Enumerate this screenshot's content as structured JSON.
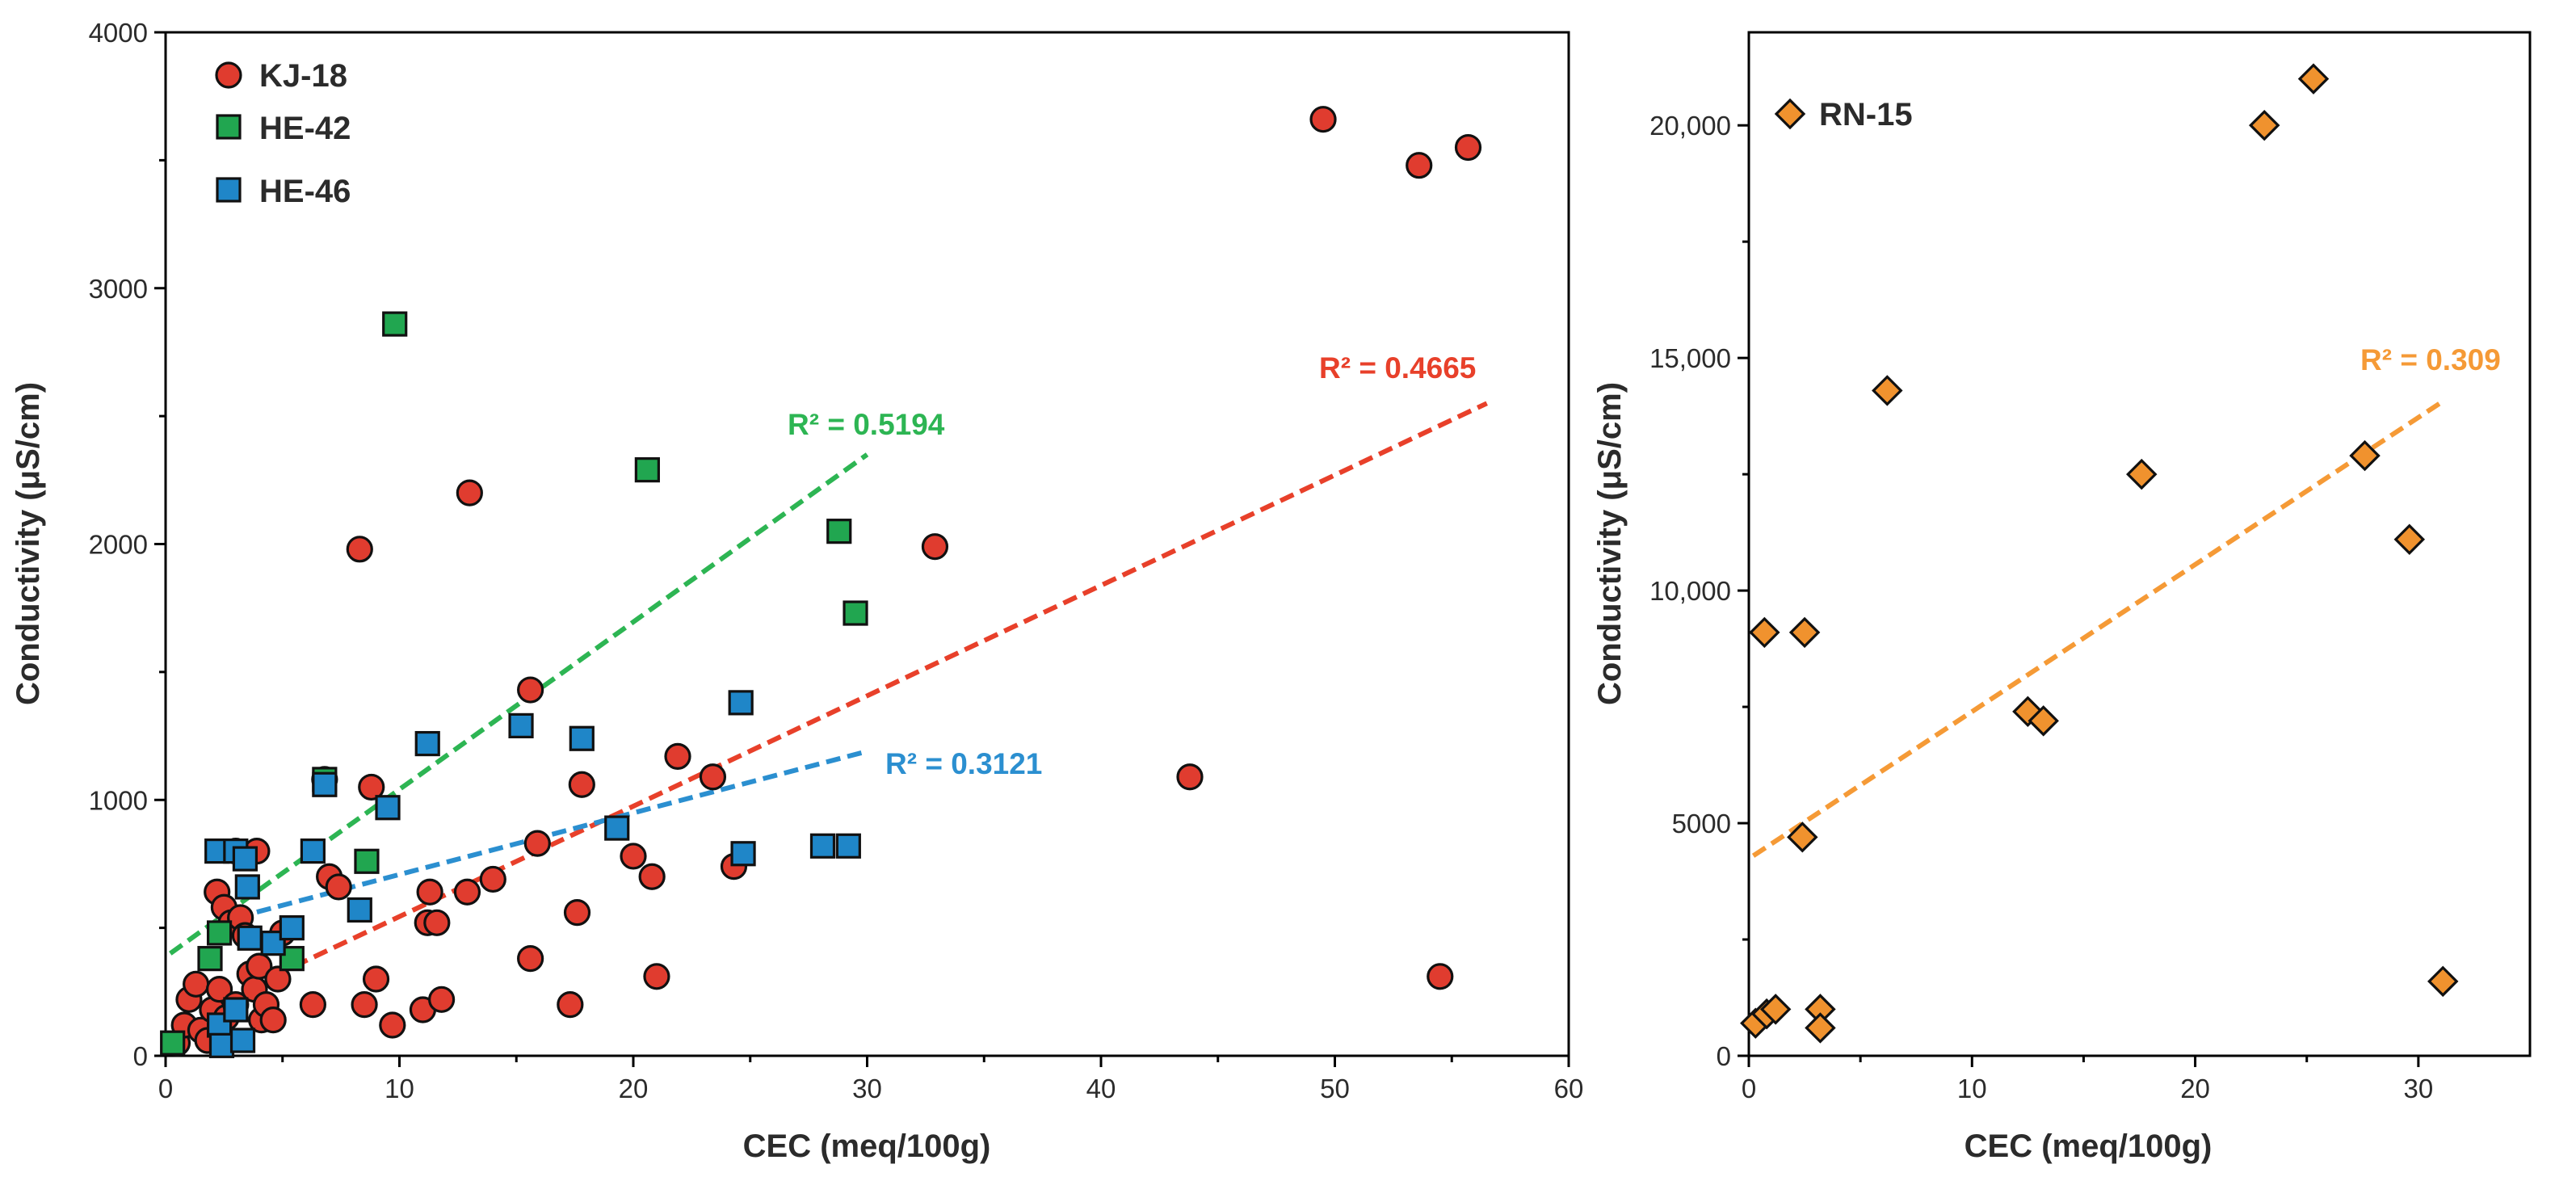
{
  "colors": {
    "KJ-18": "#e03c2f",
    "HE-42": "#21a650",
    "HE-46": "#1f86c8",
    "RN-15": "#f0922e",
    "trend_KJ-18": "#e8402a",
    "trend_HE-42": "#2db553",
    "trend_HE-46": "#2b8fd0",
    "trend_RN-15": "#f59a36"
  },
  "chart_data": [
    {
      "type": "scatter",
      "xlabel": "CEC (meq/100g)",
      "ylabel": "Conductivity (μS/cm)",
      "xlim": [
        0,
        60
      ],
      "ylim": [
        0,
        4000
      ],
      "xticks": [
        0,
        10,
        20,
        30,
        40,
        50,
        60
      ],
      "yticks": [
        0,
        1000,
        2000,
        3000,
        4000
      ],
      "xtick_labels": [
        "0",
        "10",
        "20",
        "30",
        "40",
        "50",
        "60"
      ],
      "ytick_labels": [
        "0",
        "1000",
        "2000",
        "3000",
        "4000"
      ],
      "legend_position": "top-left",
      "series": [
        {
          "name": "KJ-18",
          "marker": "circle",
          "trend_label": "R² = 0.4665",
          "trend": [
            [
              5.5,
              350
            ],
            [
              56.5,
              2550
            ]
          ],
          "points": [
            [
              0.5,
              50
            ],
            [
              0.8,
              120
            ],
            [
              1.0,
              220
            ],
            [
              1.3,
              280
            ],
            [
              1.5,
              100
            ],
            [
              1.8,
              60
            ],
            [
              2.0,
              180
            ],
            [
              2.2,
              640
            ],
            [
              2.3,
              260
            ],
            [
              2.5,
              580
            ],
            [
              2.6,
              150
            ],
            [
              2.8,
              520
            ],
            [
              3.0,
              800
            ],
            [
              3.0,
              200
            ],
            [
              3.2,
              540
            ],
            [
              3.4,
              470
            ],
            [
              3.6,
              320
            ],
            [
              3.8,
              260
            ],
            [
              3.9,
              800
            ],
            [
              4.0,
              350
            ],
            [
              4.1,
              140
            ],
            [
              4.3,
              200
            ],
            [
              4.6,
              140
            ],
            [
              4.8,
              300
            ],
            [
              5.0,
              480
            ],
            [
              6.3,
              200
            ],
            [
              6.8,
              1080
            ],
            [
              7.0,
              700
            ],
            [
              7.4,
              660
            ],
            [
              8.3,
              1980
            ],
            [
              8.5,
              200
            ],
            [
              8.8,
              1050
            ],
            [
              9.0,
              300
            ],
            [
              9.7,
              120
            ],
            [
              11.0,
              180
            ],
            [
              11.2,
              520
            ],
            [
              11.3,
              640
            ],
            [
              11.6,
              520
            ],
            [
              11.8,
              220
            ],
            [
              12.9,
              640
            ],
            [
              13.0,
              2200
            ],
            [
              14.0,
              690
            ],
            [
              15.6,
              1430
            ],
            [
              15.6,
              380
            ],
            [
              15.9,
              830
            ],
            [
              17.3,
              200
            ],
            [
              17.6,
              560
            ],
            [
              17.8,
              1060
            ],
            [
              20.0,
              780
            ],
            [
              20.8,
              700
            ],
            [
              21.0,
              310
            ],
            [
              21.9,
              1170
            ],
            [
              23.4,
              1090
            ],
            [
              24.3,
              740
            ],
            [
              32.9,
              1990
            ],
            [
              43.8,
              1090
            ],
            [
              49.5,
              3660
            ],
            [
              53.6,
              3480
            ],
            [
              54.5,
              310
            ],
            [
              55.7,
              3550
            ]
          ]
        },
        {
          "name": "HE-42",
          "marker": "square",
          "trend_label": "R² = 0.5194",
          "trend": [
            [
              0.2,
              400
            ],
            [
              30,
              2350
            ]
          ],
          "points": [
            [
              0.3,
              50
            ],
            [
              1.9,
              380
            ],
            [
              2.3,
              480
            ],
            [
              5.4,
              380
            ],
            [
              6.8,
              1080
            ],
            [
              8.6,
              760
            ],
            [
              9.8,
              2860
            ],
            [
              20.6,
              2290
            ],
            [
              28.8,
              2050
            ],
            [
              29.5,
              1730
            ]
          ]
        },
        {
          "name": "HE-46",
          "marker": "square",
          "trend_label": "R² = 0.3121",
          "trend": [
            [
              3,
              540
            ],
            [
              30,
              1190
            ]
          ],
          "points": [
            [
              2.2,
              800
            ],
            [
              2.3,
              120
            ],
            [
              2.4,
              40
            ],
            [
              3.0,
              180
            ],
            [
              3.0,
              800
            ],
            [
              3.3,
              60
            ],
            [
              3.4,
              770
            ],
            [
              3.5,
              660
            ],
            [
              3.6,
              460
            ],
            [
              4.6,
              440
            ],
            [
              5.4,
              500
            ],
            [
              6.3,
              800
            ],
            [
              6.8,
              1060
            ],
            [
              8.3,
              570
            ],
            [
              9.5,
              970
            ],
            [
              11.2,
              1220
            ],
            [
              15.2,
              1290
            ],
            [
              17.8,
              1240
            ],
            [
              19.3,
              890
            ],
            [
              24.6,
              1380
            ],
            [
              24.7,
              790
            ],
            [
              28.1,
              820
            ],
            [
              29.2,
              820
            ]
          ]
        }
      ]
    },
    {
      "type": "scatter",
      "xlabel": "CEC (meq/100g)",
      "ylabel": "Conductivity (μS/cm)",
      "xlim": [
        0,
        35
      ],
      "ylim": [
        0,
        22000
      ],
      "xticks": [
        0,
        10,
        20,
        30
      ],
      "yticks": [
        0,
        5000,
        10000,
        15000,
        20000
      ],
      "xtick_labels": [
        "0",
        "10",
        "20",
        "30"
      ],
      "ytick_labels": [
        "0",
        "5000",
        "10,000",
        "15,000",
        "20,000"
      ],
      "legend_position": "top-left",
      "series": [
        {
          "name": "RN-15",
          "marker": "diamond",
          "trend_label": "R² = 0.309",
          "trend": [
            [
              0.2,
              4300
            ],
            [
              31.2,
              14100
            ]
          ],
          "points": [
            [
              0.3,
              700
            ],
            [
              0.7,
              9100
            ],
            [
              0.8,
              900
            ],
            [
              1.2,
              1000
            ],
            [
              2.4,
              4700
            ],
            [
              2.5,
              9100
            ],
            [
              3.2,
              1000
            ],
            [
              3.2,
              600
            ],
            [
              6.2,
              14300
            ],
            [
              12.5,
              7400
            ],
            [
              13.2,
              7200
            ],
            [
              17.6,
              12500
            ],
            [
              23.1,
              20000
            ],
            [
              25.3,
              21000
            ],
            [
              27.6,
              12900
            ],
            [
              29.6,
              11100
            ],
            [
              31.1,
              1600
            ]
          ]
        }
      ]
    }
  ]
}
